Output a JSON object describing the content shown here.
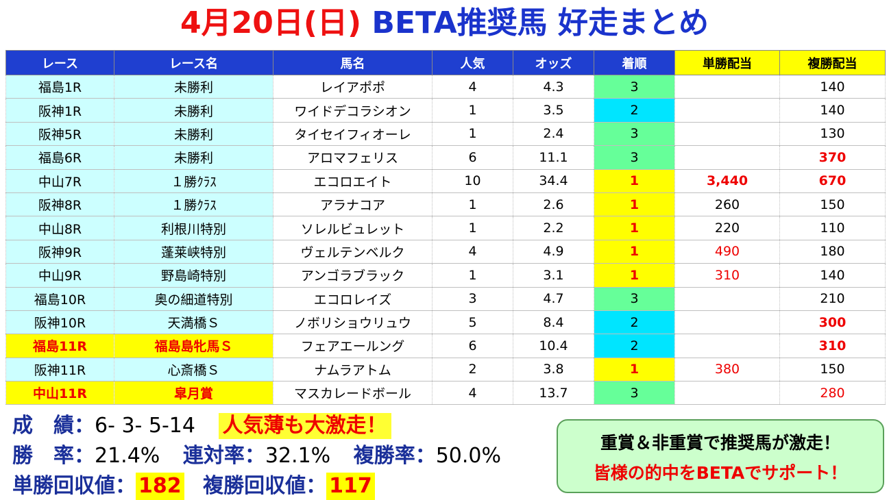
{
  "title": {
    "date": "4月20日(日)",
    "main": "BETA推奨馬 好走まとめ"
  },
  "headers": [
    "レース",
    "レース名",
    "馬名",
    "人気",
    "オッズ",
    "着順",
    "単勝配当",
    "複勝配当"
  ],
  "rows": [
    {
      "race": "福島1R",
      "name": "未勝利",
      "horse": "レイアポポ",
      "pop": "4",
      "odds": "4.3",
      "finish": "3",
      "win": "",
      "place": "140",
      "graded": false,
      "win_style": "",
      "place_style": ""
    },
    {
      "race": "阪神1R",
      "name": "未勝利",
      "horse": "ワイドデコラシオン",
      "pop": "1",
      "odds": "3.5",
      "finish": "2",
      "win": "",
      "place": "140",
      "graded": false,
      "win_style": "",
      "place_style": ""
    },
    {
      "race": "阪神5R",
      "name": "未勝利",
      "horse": "タイセイフィオーレ",
      "pop": "1",
      "odds": "2.4",
      "finish": "3",
      "win": "",
      "place": "130",
      "graded": false,
      "win_style": "",
      "place_style": ""
    },
    {
      "race": "福島6R",
      "name": "未勝利",
      "horse": "アロマフェリス",
      "pop": "6",
      "odds": "11.1",
      "finish": "3",
      "win": "",
      "place": "370",
      "graded": false,
      "win_style": "",
      "place_style": "bold"
    },
    {
      "race": "中山7R",
      "name": "１勝ｸﾗｽ",
      "horse": "エコロエイト",
      "pop": "10",
      "odds": "34.4",
      "finish": "1",
      "win": "3,440",
      "place": "670",
      "graded": false,
      "win_style": "bold",
      "place_style": "bold"
    },
    {
      "race": "阪神8R",
      "name": "１勝ｸﾗｽ",
      "horse": "アラナコア",
      "pop": "1",
      "odds": "2.6",
      "finish": "1",
      "win": "260",
      "place": "150",
      "graded": false,
      "win_style": "",
      "place_style": ""
    },
    {
      "race": "中山8R",
      "name": "利根川特別",
      "horse": "ソレルビュレット",
      "pop": "1",
      "odds": "2.2",
      "finish": "1",
      "win": "220",
      "place": "110",
      "graded": false,
      "win_style": "",
      "place_style": ""
    },
    {
      "race": "阪神9R",
      "name": "蓬莱峡特別",
      "horse": "ヴェルテンベルク",
      "pop": "4",
      "odds": "4.9",
      "finish": "1",
      "win": "490",
      "place": "180",
      "graded": false,
      "win_style": "red",
      "place_style": ""
    },
    {
      "race": "中山9R",
      "name": "野島崎特別",
      "horse": "アンゴラブラック",
      "pop": "1",
      "odds": "3.1",
      "finish": "1",
      "win": "310",
      "place": "140",
      "graded": false,
      "win_style": "red",
      "place_style": ""
    },
    {
      "race": "福島10R",
      "name": "奥の細道特別",
      "horse": "エコロレイズ",
      "pop": "3",
      "odds": "4.7",
      "finish": "3",
      "win": "",
      "place": "210",
      "graded": false,
      "win_style": "",
      "place_style": ""
    },
    {
      "race": "阪神10R",
      "name": "天満橋Ｓ",
      "horse": "ノボリショウリュウ",
      "pop": "5",
      "odds": "8.4",
      "finish": "2",
      "win": "",
      "place": "300",
      "graded": false,
      "win_style": "",
      "place_style": "bold"
    },
    {
      "race": "福島11R",
      "name": "福島島牝馬Ｓ",
      "horse": "フェアエールング",
      "pop": "6",
      "odds": "10.4",
      "finish": "2",
      "win": "",
      "place": "310",
      "graded": true,
      "win_style": "",
      "place_style": "bold"
    },
    {
      "race": "阪神11R",
      "name": "心斎橋Ｓ",
      "horse": "ナムラアトム",
      "pop": "2",
      "odds": "3.8",
      "finish": "1",
      "win": "380",
      "place": "150",
      "graded": false,
      "win_style": "red",
      "place_style": ""
    },
    {
      "race": "中山11R",
      "name": "皐月賞",
      "horse": "マスカレードボール",
      "pop": "4",
      "odds": "13.7",
      "finish": "3",
      "win": "",
      "place": "280",
      "graded": true,
      "win_style": "",
      "place_style": "red"
    }
  ],
  "summary": {
    "record_label": "成　績：",
    "record_value": "6- 3- 5-14",
    "record_badge": "人気薄も大激走！",
    "win_rate_label": "勝　率：",
    "win_rate_value": "21.4%",
    "rentai_label": "連対率：",
    "rentai_value": "32.1%",
    "place_rate_label": "複勝率：",
    "place_rate_value": "50.0%",
    "win_return_label": "単勝回収値：",
    "win_return_value": "182",
    "place_return_label": "複勝回収値：",
    "place_return_value": "117"
  },
  "promo": {
    "line1": "重賞＆非重賞で推奨馬が激走！",
    "line2": "皆様の的中をBETAでサポート！"
  }
}
